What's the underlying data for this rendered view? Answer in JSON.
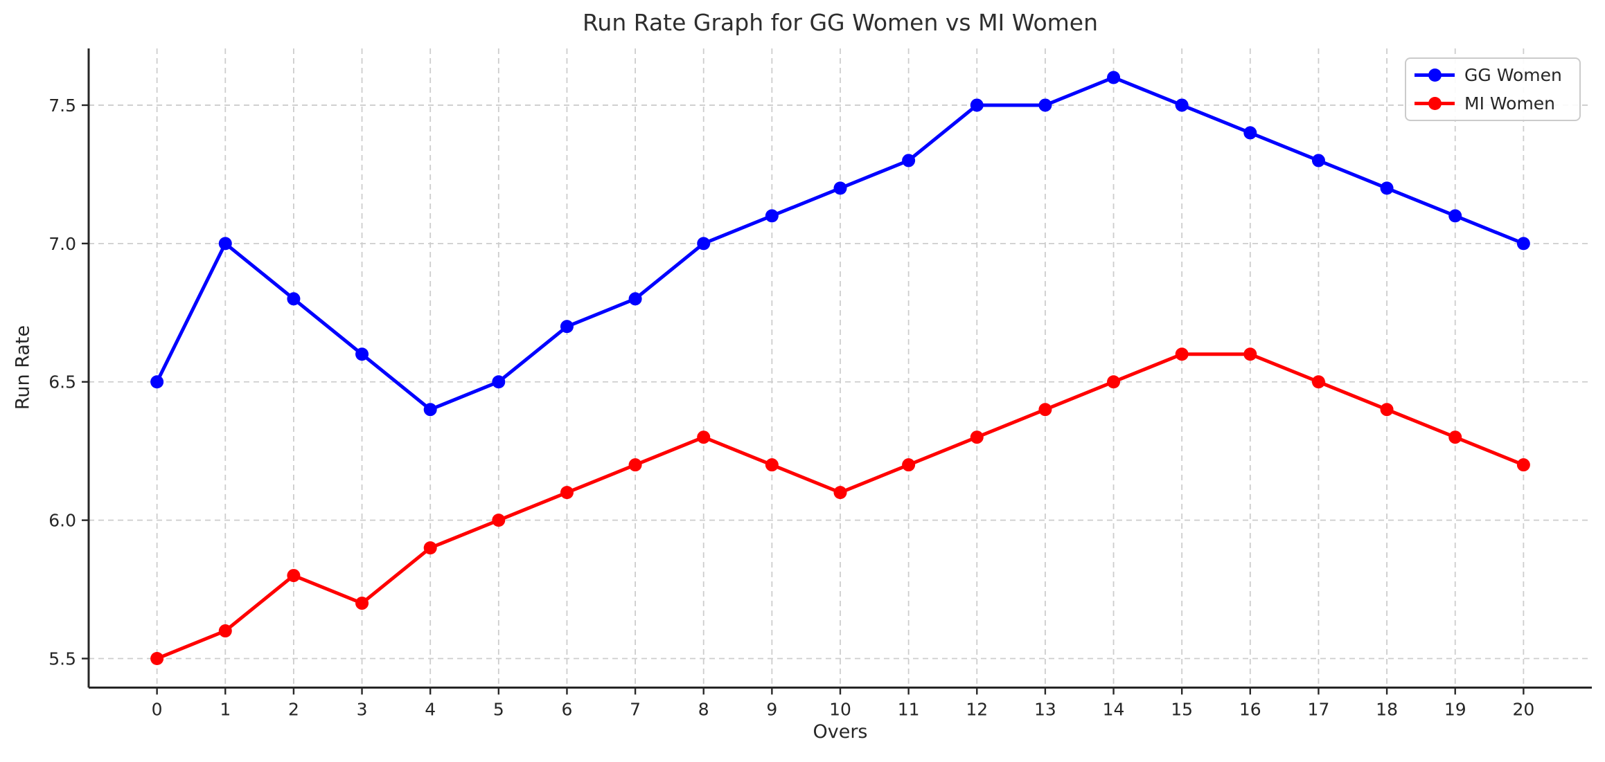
{
  "chart_data": {
    "type": "line",
    "title": "Run Rate Graph for GG Women vs MI Women",
    "xlabel": "Overs",
    "ylabel": "Run Rate",
    "x": [
      0,
      1,
      2,
      3,
      4,
      5,
      6,
      7,
      8,
      9,
      10,
      11,
      12,
      13,
      14,
      15,
      16,
      17,
      18,
      19,
      20
    ],
    "series": [
      {
        "name": "GG Women",
        "color": "#0000ff",
        "values": [
          6.5,
          7.0,
          6.8,
          6.6,
          6.4,
          6.5,
          6.7,
          6.8,
          7.0,
          7.1,
          7.2,
          7.3,
          7.5,
          7.5,
          7.6,
          7.5,
          7.4,
          7.3,
          7.2,
          7.1,
          7.0
        ]
      },
      {
        "name": "MI Women",
        "color": "#ff0000",
        "values": [
          5.5,
          5.6,
          5.8,
          5.7,
          5.9,
          6.0,
          6.1,
          6.2,
          6.3,
          6.2,
          6.1,
          6.2,
          6.3,
          6.4,
          6.5,
          6.6,
          6.6,
          6.5,
          6.4,
          6.3,
          6.2
        ]
      }
    ],
    "xticks": [
      0,
      1,
      2,
      3,
      4,
      5,
      6,
      7,
      8,
      9,
      10,
      11,
      12,
      13,
      14,
      15,
      16,
      17,
      18,
      19,
      20
    ],
    "yticks": [
      5.5,
      6.0,
      6.5,
      7.0,
      7.5
    ],
    "xlim": [
      -1,
      21
    ],
    "ylim": [
      5.395,
      7.705
    ],
    "grid": true,
    "legend_position": "upper right"
  }
}
